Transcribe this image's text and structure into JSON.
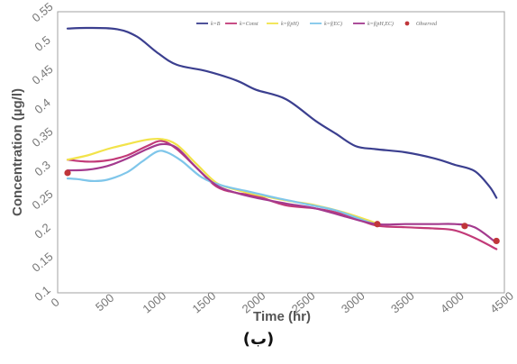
{
  "caption": "(ب)",
  "chart_data": {
    "type": "line",
    "xlabel": "Time (hr)",
    "ylabel": "Concentration (µg/l)",
    "xlim": [
      0,
      4500
    ],
    "ylim": [
      0.1,
      0.55
    ],
    "x_ticks": [
      "0",
      "500",
      "1000",
      "1500",
      "2000",
      "2500",
      "3000",
      "3500",
      "4000",
      "4500"
    ],
    "y_ticks": [
      "0.1",
      "0.15",
      "0.2",
      "0.25",
      "0.3",
      "0.35",
      "0.4",
      "0.45",
      "0.5",
      "0.55"
    ],
    "grid": false,
    "legend_position": "top-right",
    "series": [
      {
        "name": "k=B",
        "color": "#3b3f8f",
        "x": [
          100,
          300,
          600,
          800,
          1000,
          1200,
          1500,
          1800,
          2000,
          2300,
          2600,
          2800,
          3000,
          3200,
          3500,
          3800,
          4000,
          4200,
          4350,
          4420
        ],
        "y": [
          0.523,
          0.524,
          0.522,
          0.51,
          0.485,
          0.465,
          0.455,
          0.44,
          0.425,
          0.41,
          0.375,
          0.355,
          0.335,
          0.33,
          0.325,
          0.315,
          0.305,
          0.295,
          0.27,
          0.252
        ]
      },
      {
        "name": "k=Const",
        "color": "#c23a78",
        "x": [
          100,
          300,
          500,
          700,
          900,
          1050,
          1200,
          1400,
          1600,
          1800,
          2000,
          2300,
          2600,
          2900,
          3200,
          3500,
          3800,
          4000,
          4200,
          4420
        ],
        "y": [
          0.313,
          0.31,
          0.312,
          0.32,
          0.335,
          0.343,
          0.33,
          0.3,
          0.27,
          0.26,
          0.255,
          0.24,
          0.235,
          0.225,
          0.208,
          0.205,
          0.203,
          0.2,
          0.188,
          0.17
        ]
      },
      {
        "name": "k=f(pH)",
        "color": "#f2e34a",
        "x": [
          100,
          300,
          500,
          700,
          900,
          1050,
          1200,
          1400,
          1600,
          1800,
          2000,
          2300,
          2600,
          2900,
          3200
        ],
        "y": [
          0.313,
          0.32,
          0.33,
          0.338,
          0.345,
          0.346,
          0.337,
          0.306,
          0.276,
          0.265,
          0.257,
          0.248,
          0.24,
          0.228,
          0.212
        ]
      },
      {
        "name": "k=f(EC)",
        "color": "#7fc6ea",
        "x": [
          100,
          200,
          350,
          500,
          700,
          850,
          1000,
          1100,
          1250,
          1450,
          1650,
          1900,
          2200,
          2500,
          2800,
          3100,
          3200
        ],
        "y": [
          0.283,
          0.282,
          0.279,
          0.281,
          0.293,
          0.31,
          0.326,
          0.325,
          0.311,
          0.285,
          0.272,
          0.263,
          0.252,
          0.242,
          0.232,
          0.215,
          0.21
        ]
      },
      {
        "name": "k=f(pH,EC)",
        "color": "#a33a8e",
        "x": [
          100,
          300,
          500,
          700,
          900,
          1050,
          1200,
          1400,
          1600,
          1800,
          2000,
          2300,
          2600,
          2900,
          3200,
          3500,
          3800,
          4000,
          4200,
          4420
        ],
        "y": [
          0.296,
          0.297,
          0.303,
          0.315,
          0.33,
          0.338,
          0.332,
          0.3,
          0.272,
          0.26,
          0.252,
          0.243,
          0.235,
          0.222,
          0.21,
          0.21,
          0.21,
          0.21,
          0.205,
          0.18
        ]
      }
    ],
    "observed": {
      "name": "Observed",
      "color": "#c0363a",
      "x": [
        100,
        3220,
        4100,
        4420
      ],
      "y": [
        0.292,
        0.21,
        0.207,
        0.183
      ]
    }
  }
}
